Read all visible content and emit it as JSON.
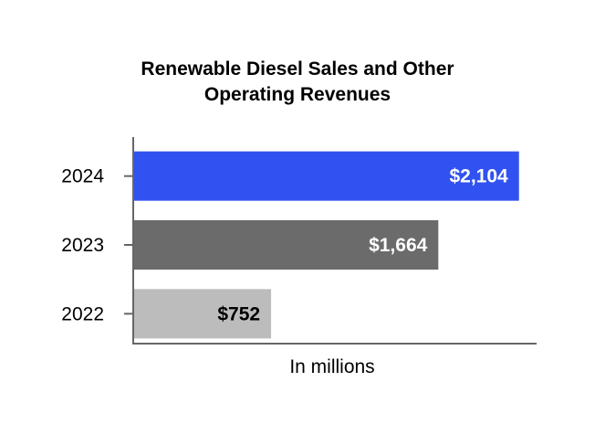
{
  "chart_data": {
    "type": "bar",
    "orientation": "horizontal",
    "title_lines": [
      "Renewable Diesel Sales and Other",
      "Operating Revenues"
    ],
    "categories": [
      "2024",
      "2023",
      "2022"
    ],
    "values": [
      2104,
      1664,
      752
    ],
    "data_labels": [
      "$2,104",
      "$1,664",
      "$752"
    ],
    "bar_colors": [
      "#3152f0",
      "#6b6b6b",
      "#bcbcbc"
    ],
    "label_colors": [
      "#ffffff",
      "#ffffff",
      "#000000"
    ],
    "xlabel": "In millions",
    "xlim": [
      0,
      2200
    ],
    "grid": false
  }
}
